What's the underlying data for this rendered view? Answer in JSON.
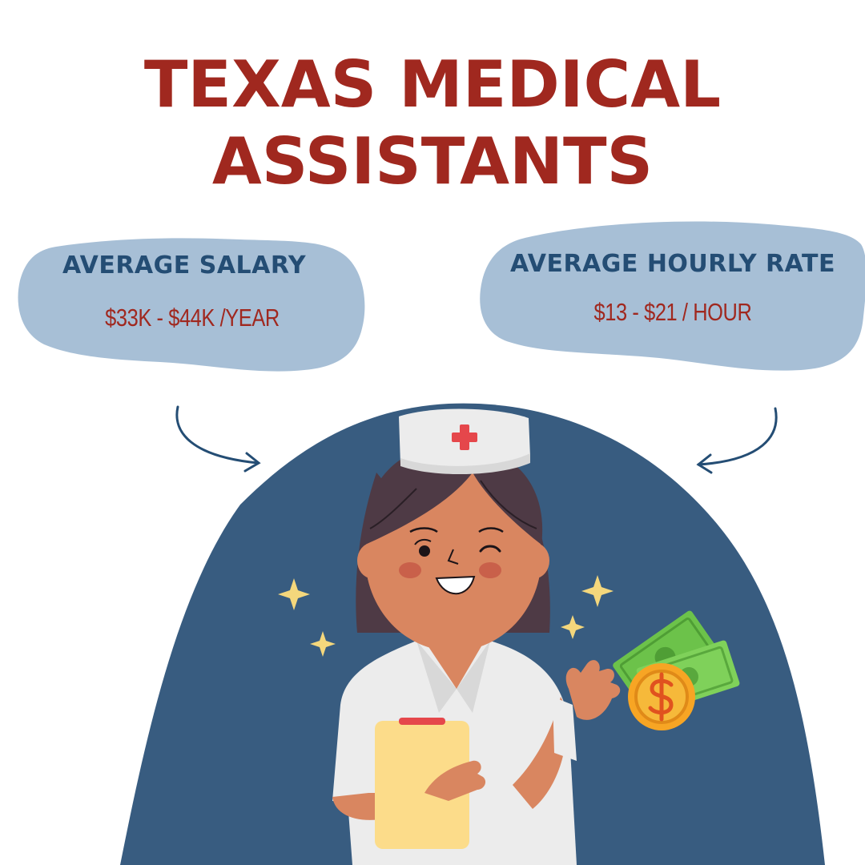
{
  "title": {
    "line1": "TEXAS MEDICAL",
    "line2": "ASSISTANTS"
  },
  "cards": {
    "salary": {
      "heading": "AVERAGE SALARY",
      "value": "$33K - $44K /YEAR"
    },
    "hourly": {
      "heading": "AVERAGE HOURLY RATE",
      "value": "$13 - $21 / HOUR"
    }
  },
  "colors": {
    "title": "#a0281f",
    "heading": "#244d74",
    "value": "#a0281f",
    "cloud": "#a7bfd6",
    "arch": "#385c80"
  },
  "illustration": {
    "subject": "nurse-holding-clipboard",
    "icons": [
      "nurse-cap-icon",
      "red-cross-icon",
      "sparkle-icon",
      "money-bills-icon",
      "dollar-coin-icon",
      "curved-arrow-icon"
    ]
  }
}
